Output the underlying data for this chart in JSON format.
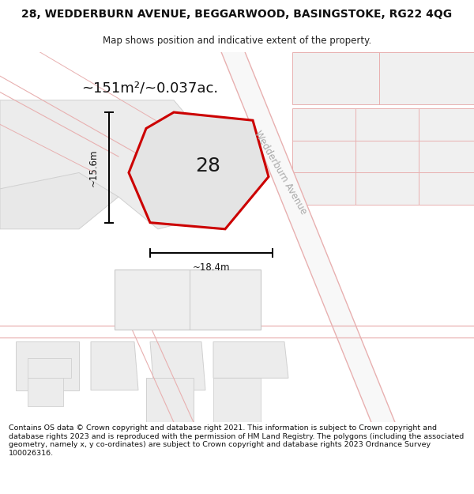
{
  "title": "28, WEDDERBURN AVENUE, BEGGARWOOD, BASINGSTOKE, RG22 4QG",
  "subtitle": "Map shows position and indicative extent of the property.",
  "area_label": "~151m²/~0.037ac.",
  "width_label": "~18.4m",
  "height_label": "~15.6m",
  "property_number": "28",
  "street_label": "Wedderburn Avenue",
  "footer": "Contains OS data © Crown copyright and database right 2021. This information is subject to Crown copyright and database rights 2023 and is reproduced with the permission of HM Land Registry. The polygons (including the associated geometry, namely x, y co-ordinates) are subject to Crown copyright and database rights 2023 Ordnance Survey 100026316.",
  "bg_color": "#ffffff",
  "map_bg": "#f8f8f8",
  "block_fill": "#ececec",
  "block_edge": "#d0d0d0",
  "road_line_color": "#e8b0b0",
  "prop_fill": "#e4e4e4",
  "prop_edge": "#cc0000",
  "prop_number_color": "#1a1a1a",
  "dim_color": "#111111",
  "street_label_color": "#aaaaaa",
  "title_fontsize": 10,
  "subtitle_fontsize": 8.5,
  "area_fontsize": 13,
  "number_fontsize": 18,
  "dim_fontsize": 8.5,
  "street_fontsize": 8.5,
  "footer_fontsize": 6.8
}
